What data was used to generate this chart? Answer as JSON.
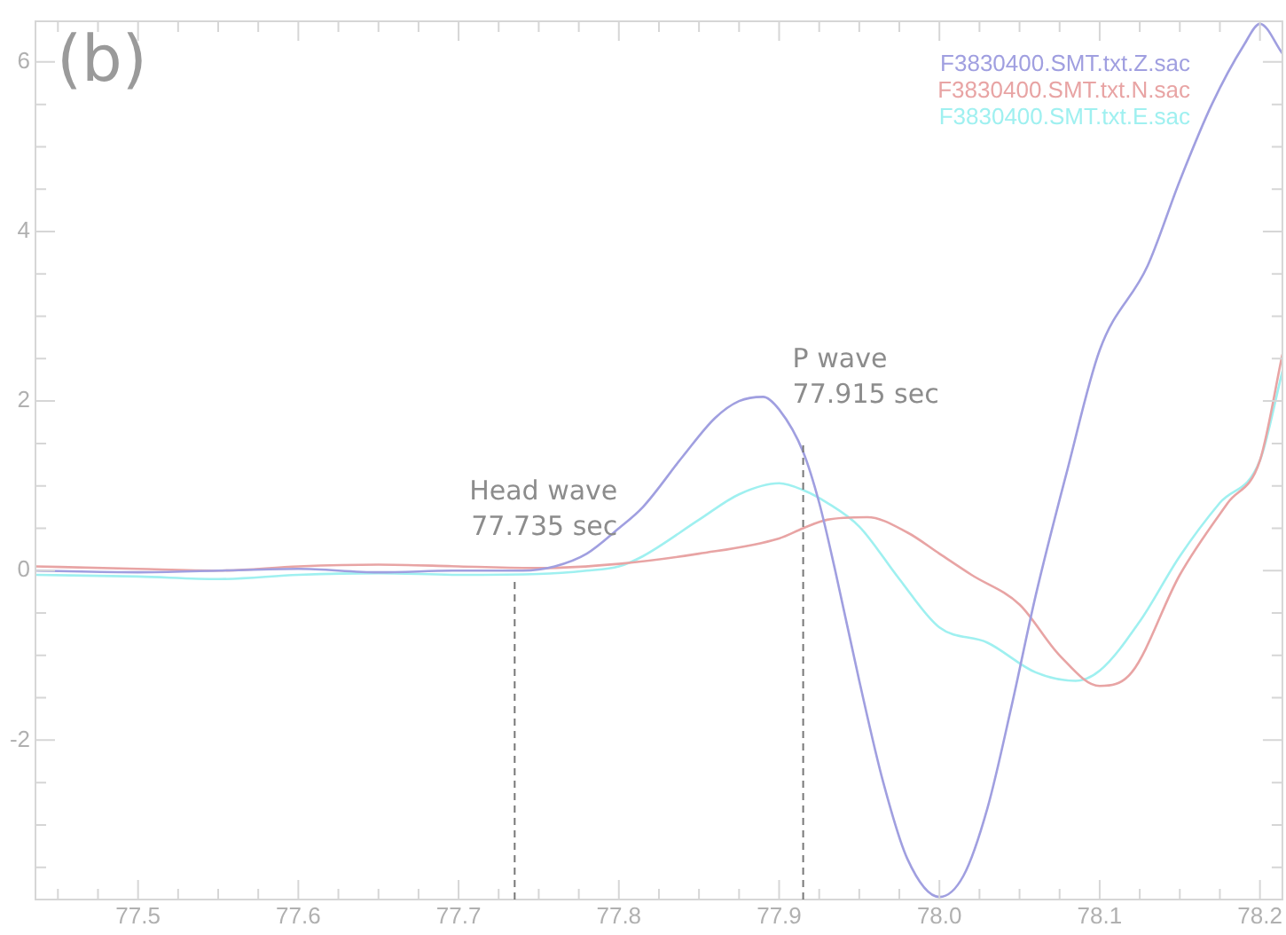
{
  "chart_data": {
    "type": "line",
    "xlim": [
      77.436,
      78.214
    ],
    "ylim": [
      -3.88,
      6.48
    ],
    "xticks": [
      {
        "value": 77.45,
        "label": null
      },
      {
        "value": 77.475,
        "label": null
      },
      {
        "value": 77.5,
        "label": "77.5"
      },
      {
        "value": 77.525,
        "label": null
      },
      {
        "value": 77.55,
        "label": null
      },
      {
        "value": 77.575,
        "label": null
      },
      {
        "value": 77.6,
        "label": "77.6"
      },
      {
        "value": 77.625,
        "label": null
      },
      {
        "value": 77.65,
        "label": null
      },
      {
        "value": 77.675,
        "label": null
      },
      {
        "value": 77.7,
        "label": "77.7"
      },
      {
        "value": 77.725,
        "label": null
      },
      {
        "value": 77.75,
        "label": null
      },
      {
        "value": 77.775,
        "label": null
      },
      {
        "value": 77.8,
        "label": "77.8"
      },
      {
        "value": 77.825,
        "label": null
      },
      {
        "value": 77.85,
        "label": null
      },
      {
        "value": 77.875,
        "label": null
      },
      {
        "value": 77.9,
        "label": "77.9"
      },
      {
        "value": 77.925,
        "label": null
      },
      {
        "value": 77.95,
        "label": null
      },
      {
        "value": 77.975,
        "label": null
      },
      {
        "value": 78,
        "label": "78.0"
      },
      {
        "value": 78.025,
        "label": null
      },
      {
        "value": 78.05,
        "label": null
      },
      {
        "value": 78.075,
        "label": null
      },
      {
        "value": 78.1,
        "label": "78.1"
      },
      {
        "value": 78.125,
        "label": null
      },
      {
        "value": 78.15,
        "label": null
      },
      {
        "value": 78.175,
        "label": null
      },
      {
        "value": 78.2,
        "label": "78.2"
      }
    ],
    "yticks": [
      {
        "value": -3.5,
        "label": null
      },
      {
        "value": -3,
        "label": null
      },
      {
        "value": -2.5,
        "label": null
      },
      -2,
      {
        "value": -1.5,
        "label": null
      },
      {
        "value": -1,
        "label": null
      },
      {
        "value": -0.5,
        "label": null
      },
      0,
      {
        "value": 0.5,
        "label": null
      },
      {
        "value": 1,
        "label": null
      },
      {
        "value": 1.5,
        "label": null
      },
      2,
      {
        "value": 2.5,
        "label": null
      },
      {
        "value": 3,
        "label": null
      },
      {
        "value": 3.5,
        "label": null
      },
      4,
      {
        "value": 4.5,
        "label": null
      },
      {
        "value": 5,
        "label": null
      },
      {
        "value": 5.5,
        "label": null
      },
      6
    ],
    "grid": false,
    "legend": "top right",
    "marker": "none",
    "line_style": "solid",
    "series": [
      {
        "name": "F3830400.SMT.txt.Z.sac",
        "color": "#a09fe0",
        "x": [
          77.436,
          77.5,
          77.55,
          77.6,
          77.65,
          77.7,
          77.74,
          77.76,
          77.78,
          77.8,
          77.815,
          77.84,
          77.86,
          77.875,
          77.89,
          77.9,
          77.915,
          77.925,
          77.935,
          77.95,
          77.965,
          77.98,
          78.0,
          78.015,
          78.03,
          78.045,
          78.06,
          78.08,
          78.1,
          78.13,
          78.15,
          78.17,
          78.19,
          78.2,
          78.214
        ],
        "values": [
          0.0,
          -0.02,
          0.0,
          0.02,
          -0.02,
          0.0,
          0.0,
          0.05,
          0.2,
          0.5,
          0.75,
          1.35,
          1.8,
          2.0,
          2.05,
          1.9,
          1.4,
          0.8,
          0.0,
          -1.3,
          -2.5,
          -3.4,
          -3.85,
          -3.6,
          -2.8,
          -1.6,
          -0.3,
          1.2,
          2.6,
          3.6,
          4.6,
          5.5,
          6.2,
          6.45,
          6.1
        ]
      },
      {
        "name": "F3830400.SMT.txt.N.sac",
        "color": "#e8a4a4",
        "x": [
          77.436,
          77.5,
          77.55,
          77.6,
          77.65,
          77.7,
          77.75,
          77.8,
          77.85,
          77.9,
          77.915,
          77.93,
          77.955,
          77.98,
          78.0,
          78.02,
          78.05,
          78.075,
          78.1,
          78.12,
          78.15,
          78.18,
          78.2,
          78.214
        ],
        "values": [
          0.05,
          0.02,
          0.0,
          0.05,
          0.07,
          0.05,
          0.03,
          0.08,
          0.2,
          0.38,
          0.5,
          0.6,
          0.63,
          0.45,
          0.2,
          -0.05,
          -0.4,
          -1.0,
          -1.36,
          -1.2,
          -0.05,
          0.8,
          1.3,
          2.55
        ]
      },
      {
        "name": "F3830400.SMT.txt.E.sac",
        "color": "#9ff0f0",
        "x": [
          77.436,
          77.5,
          77.55,
          77.6,
          77.65,
          77.7,
          77.75,
          77.78,
          77.8,
          77.815,
          77.85,
          77.875,
          77.9,
          77.915,
          77.93,
          77.95,
          77.975,
          78.0,
          78.03,
          78.06,
          78.085,
          78.1,
          78.125,
          78.15,
          78.175,
          78.2,
          78.214
        ],
        "values": [
          -0.05,
          -0.07,
          -0.1,
          -0.05,
          -0.03,
          -0.05,
          -0.04,
          0.0,
          0.05,
          0.17,
          0.6,
          0.9,
          1.03,
          0.95,
          0.8,
          0.52,
          -0.1,
          -0.67,
          -0.85,
          -1.2,
          -1.3,
          -1.18,
          -0.6,
          0.17,
          0.8,
          1.3,
          2.35
        ]
      }
    ],
    "ref_lines": [
      {
        "axis": "x",
        "value": 77.735,
        "label": "Head wave\n77.735 sec",
        "color": "#777777",
        "line_style": "dashed"
      },
      {
        "axis": "x",
        "value": 77.915,
        "label": "P wave\n77.915 sec",
        "color": "#777777",
        "line_style": "dashed"
      }
    ],
    "annotations": [
      "(b)"
    ]
  }
}
